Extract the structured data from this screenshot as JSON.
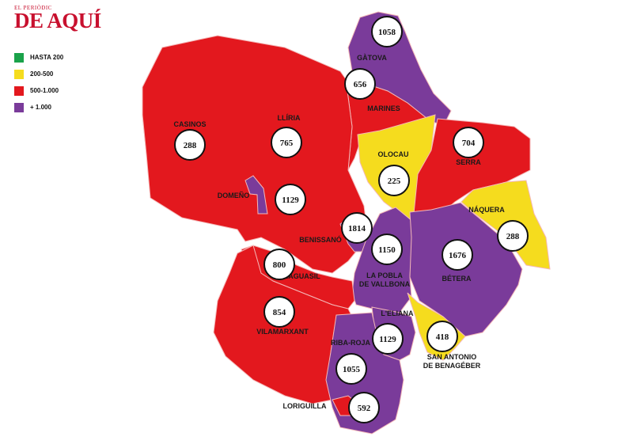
{
  "masthead": {
    "small": "EL PERIÒDIC",
    "big": "DE AQUÍ"
  },
  "legend": [
    {
      "label": "HASTA 200",
      "color": "#1aa24a"
    },
    {
      "label": "200-500",
      "color": "#f5dc1e"
    },
    {
      "label": "500-1.000",
      "color": "#e3181e"
    },
    {
      "label": "+ 1.000",
      "color": "#7a3b9a"
    }
  ],
  "colors": {
    "yellow": "#f5dc1e",
    "red": "#e3181e",
    "purple": "#7a3b9a",
    "border": "#f4b8b8"
  },
  "municipalities": [
    {
      "name": "GÀTOVA",
      "value": "1058",
      "category": "purple"
    },
    {
      "name": "MARINES",
      "value": "656",
      "category": "red"
    },
    {
      "name": "CASINOS",
      "value": "288",
      "category": "yellow"
    },
    {
      "name": "LLÍRIA",
      "value": "765",
      "category": "red"
    },
    {
      "name": "OLOCAU",
      "value": "225",
      "category": "yellow"
    },
    {
      "name": "SERRA",
      "value": "704",
      "category": "red"
    },
    {
      "name": "DOMEÑO",
      "value": "1129",
      "category": "purple"
    },
    {
      "name": "NÁQUERA",
      "value": "288",
      "category": "yellow"
    },
    {
      "name": "BENISSANÓ",
      "value": "1814",
      "category": "purple"
    },
    {
      "name": "LA POBLA\nDE VALLBONA",
      "value": "1150",
      "category": "purple"
    },
    {
      "name": "BÉTERA",
      "value": "1676",
      "category": "purple"
    },
    {
      "name": "BENAGUASIL",
      "value": "800",
      "category": "red"
    },
    {
      "name": "VILAMARXANT",
      "value": "854",
      "category": "red"
    },
    {
      "name": "L'ELIANA",
      "value": "1129",
      "category": "purple"
    },
    {
      "name": "RIBA-ROJA",
      "value": "1055",
      "category": "purple"
    },
    {
      "name": "SAN ANTONIO\nDE BENAGÉBER",
      "value": "418",
      "category": "yellow"
    },
    {
      "name": "LORIGUILLA",
      "value": "592",
      "category": "red"
    }
  ]
}
